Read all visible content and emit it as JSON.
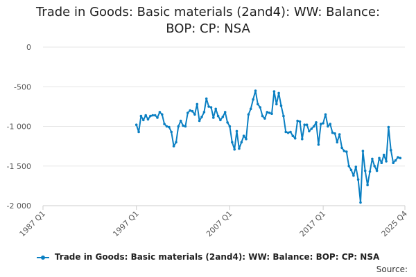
{
  "title_line1": "Trade in Goods: Basic materials (2and4): WW: Balance:",
  "title_line2": "BOP: CP: NSA",
  "source_label": "Source:",
  "chart_data": {
    "type": "line",
    "title": "Trade in Goods: Basic materials (2and4): WW: Balance: BOP: CP: NSA",
    "xlabel": "",
    "ylabel": "",
    "x_tick_labels": [
      "1987 Q1",
      "1997 Q1",
      "2007 Q1",
      "2017 Q1",
      "2025 Q4"
    ],
    "y_ticks": [
      0,
      -500,
      -1000,
      -1500,
      -2000
    ],
    "y_tick_labels": [
      "0",
      "-500",
      "-1 000",
      "-1 500",
      "-2 000"
    ],
    "ylim": [
      -2000,
      0
    ],
    "xlim": [
      "1987 Q1",
      "2025 Q4"
    ],
    "grid": "horizontal",
    "legend": "bottom",
    "color": "#0a7fc2",
    "series": [
      {
        "name": "Trade in Goods: Basic materials (2and4): WW: Balance: BOP: CP: NSA",
        "x_start": "1997 Q1",
        "frequency": "quarterly",
        "values": [
          -980,
          -1070,
          -870,
          -920,
          -860,
          -910,
          -870,
          -860,
          -860,
          -890,
          -820,
          -850,
          -970,
          -1000,
          -1010,
          -1070,
          -1250,
          -1200,
          -1000,
          -930,
          -990,
          -1000,
          -830,
          -800,
          -810,
          -850,
          -720,
          -930,
          -880,
          -820,
          -650,
          -750,
          -760,
          -890,
          -780,
          -870,
          -920,
          -880,
          -820,
          -950,
          -1000,
          -1200,
          -1290,
          -1060,
          -1280,
          -1200,
          -1120,
          -1160,
          -850,
          -780,
          -660,
          -550,
          -720,
          -760,
          -870,
          -900,
          -820,
          -830,
          -840,
          -560,
          -720,
          -580,
          -740,
          -870,
          -1070,
          -1080,
          -1070,
          -1120,
          -1150,
          -930,
          -940,
          -1160,
          -980,
          -980,
          -1060,
          -1030,
          -1000,
          -950,
          -1230,
          -970,
          -960,
          -850,
          -1000,
          -970,
          -1080,
          -1090,
          -1200,
          -1100,
          -1270,
          -1310,
          -1320,
          -1500,
          -1550,
          -1620,
          -1510,
          -1670,
          -1960,
          -1310,
          -1560,
          -1740,
          -1570,
          -1410,
          -1500,
          -1560,
          -1400,
          -1460,
          -1360,
          -1440,
          -1010,
          -1300,
          -1460,
          -1430,
          -1390,
          -1400
        ]
      }
    ]
  }
}
